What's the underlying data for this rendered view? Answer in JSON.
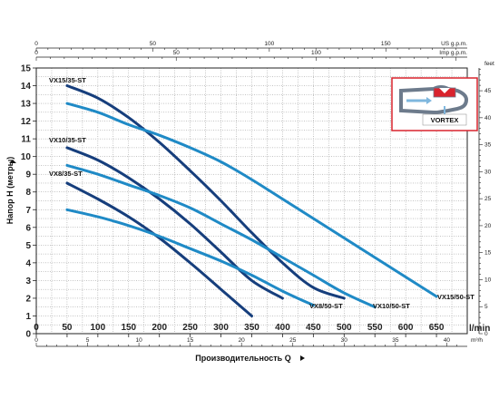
{
  "colors": {
    "dark_blue": "#163e7c",
    "light_blue": "#1f8ac6",
    "inset_red": "#d9232d",
    "inset_border": "#d9232d"
  },
  "inset": {
    "label": "VORTEX"
  },
  "chart_data": {
    "type": "line",
    "xlabel": "Производительность Q",
    "ylabel": "Напор H (метры)",
    "x_unit": "l/min",
    "x_ticks": [
      0,
      50,
      100,
      150,
      200,
      250,
      300,
      350,
      400,
      450,
      500,
      550,
      600,
      650
    ],
    "xlim": [
      0,
      700
    ],
    "y_ticks": [
      0,
      1,
      2,
      3,
      4,
      5,
      6,
      7,
      8,
      9,
      10,
      11,
      12,
      13,
      14,
      15
    ],
    "ylim": [
      0,
      15
    ],
    "top_axis_1": {
      "unit": "US g.p.m.",
      "ticks": [
        0,
        50,
        100,
        150
      ]
    },
    "top_axis_2": {
      "unit": "Imp g.p.m.",
      "ticks": [
        0,
        50,
        100
      ]
    },
    "bottom_axis_2": {
      "unit": "m³/h",
      "ticks": [
        0,
        5,
        10,
        15,
        20,
        25,
        30,
        35,
        40
      ]
    },
    "right_axis": {
      "unit": "feet",
      "ticks": [
        0,
        5,
        10,
        15,
        20,
        25,
        30,
        35,
        40,
        45
      ]
    },
    "grid": true,
    "series": [
      {
        "name": "VX15/35-ST",
        "color": "dark_blue",
        "x": [
          50,
          100,
          150,
          200,
          250,
          300,
          350,
          400,
          450,
          500
        ],
        "y": [
          14.0,
          13.3,
          12.2,
          10.8,
          9.2,
          7.5,
          5.7,
          4.0,
          2.6,
          2.0
        ]
      },
      {
        "name": "VX15/50-ST",
        "color": "light_blue",
        "x": [
          50,
          100,
          150,
          200,
          250,
          300,
          350,
          400,
          450,
          500,
          550,
          600,
          650
        ],
        "y": [
          13.0,
          12.5,
          11.8,
          11.2,
          10.5,
          9.7,
          8.7,
          7.6,
          6.5,
          5.4,
          4.3,
          3.2,
          2.1
        ]
      },
      {
        "name": "VX10/35-ST",
        "color": "dark_blue",
        "x": [
          50,
          100,
          150,
          200,
          250,
          300,
          350,
          400
        ],
        "y": [
          10.5,
          9.8,
          8.8,
          7.6,
          6.2,
          4.6,
          3.0,
          2.0
        ]
      },
      {
        "name": "VX10/50-ST",
        "color": "light_blue",
        "x": [
          50,
          100,
          150,
          200,
          250,
          300,
          350,
          400,
          450,
          500,
          550
        ],
        "y": [
          9.5,
          9.0,
          8.4,
          7.8,
          7.1,
          6.2,
          5.3,
          4.3,
          3.3,
          2.3,
          1.5
        ]
      },
      {
        "name": "VX8/35-ST",
        "color": "dark_blue",
        "x": [
          50,
          100,
          150,
          200,
          250,
          300,
          350
        ],
        "y": [
          8.5,
          7.6,
          6.6,
          5.4,
          4.0,
          2.5,
          1.0
        ]
      },
      {
        "name": "VX8/50-ST",
        "color": "light_blue",
        "x": [
          50,
          100,
          150,
          200,
          250,
          300,
          350,
          400,
          450
        ],
        "y": [
          7.0,
          6.6,
          6.1,
          5.5,
          4.8,
          4.1,
          3.3,
          2.4,
          1.6
        ]
      }
    ],
    "series_labels": [
      "VX15/35-ST",
      "VX10/35-ST",
      "VX8/35-ST",
      "VX8/50-ST",
      "VX10/50-ST",
      "VX15/50-ST"
    ]
  }
}
